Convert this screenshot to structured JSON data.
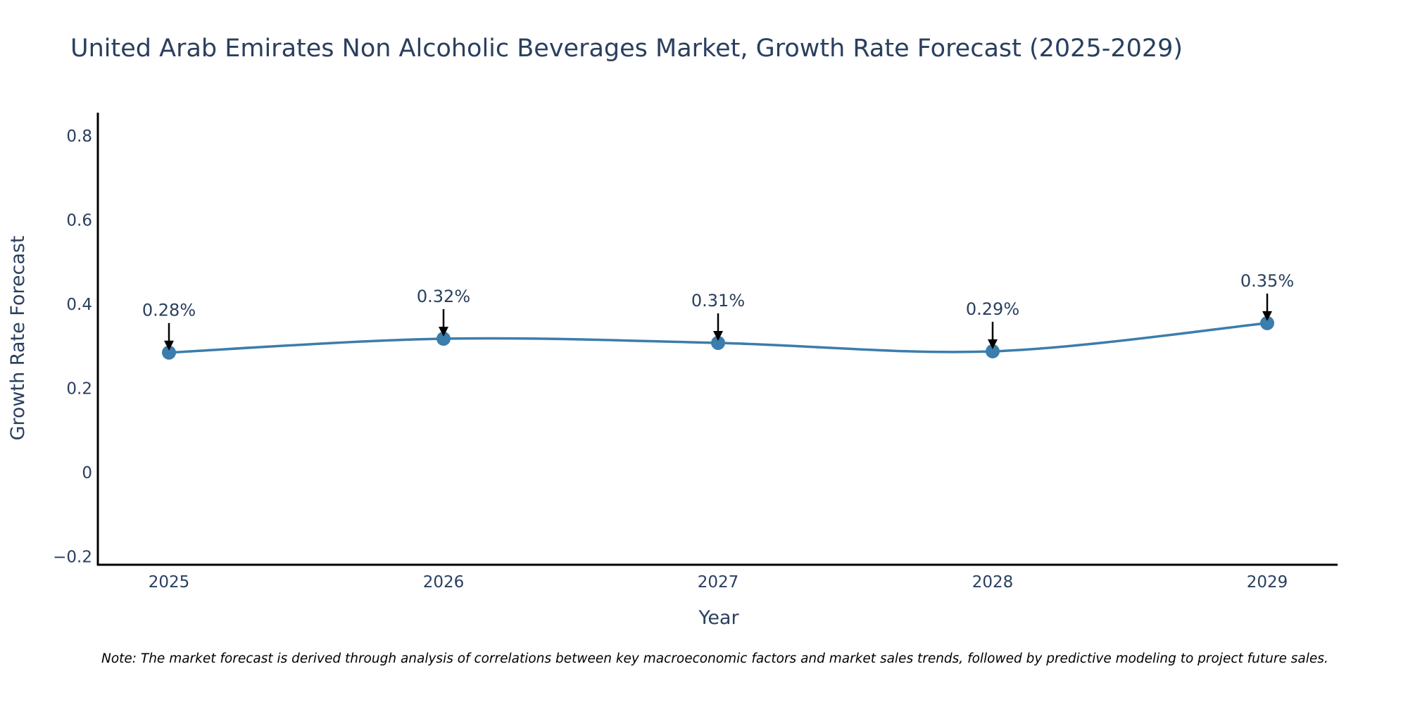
{
  "chart_data": {
    "type": "line",
    "title": "United Arab Emirates Non Alcoholic Beverages Market, Growth Rate Forecast (2025-2029)",
    "xlabel": "Year",
    "ylabel": "Growth Rate Forecast",
    "categories": [
      "2025",
      "2026",
      "2027",
      "2028",
      "2029"
    ],
    "series": [
      {
        "name": "Growth Rate Forecast",
        "values": [
          0.285,
          0.318,
          0.308,
          0.288,
          0.355
        ],
        "labels": [
          "0.28%",
          "0.32%",
          "0.31%",
          "0.29%",
          "0.35%"
        ]
      }
    ],
    "yticks": [
      -0.2,
      0,
      0.2,
      0.4,
      0.6,
      0.8
    ],
    "ytick_labels": [
      "−0.2",
      "0",
      "0.2",
      "0.4",
      "0.6",
      "0.8"
    ],
    "ylim": [
      -0.22,
      0.85
    ],
    "line_shape": "spline",
    "grid": false,
    "legend": "none",
    "line_color": "#3b7dac",
    "marker_color": "#3b7dac",
    "arrow_color": "#000000"
  },
  "note": "Note: The market forecast is derived through analysis of correlations between key macroeconomic factors and market sales trends, followed by predictive modeling to project future sales."
}
